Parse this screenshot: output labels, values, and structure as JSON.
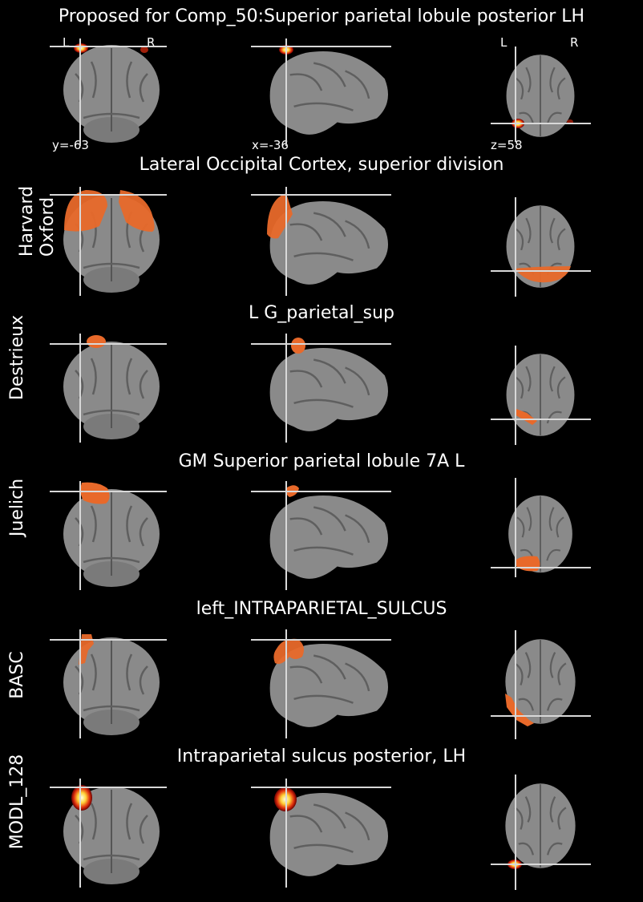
{
  "header": {
    "title": "Proposed for Comp_50:Superior parietal lobule posterior LH",
    "coords": {
      "coronal": "y=-63",
      "sagittal": "x=-36",
      "axial": "z=58"
    },
    "orient_coronal_left": "L",
    "orient_coronal_right": "R",
    "orient_axial_left": "L",
    "orient_axial_right": "R"
  },
  "rows": [
    {
      "atlas": "Harvard\nOxford",
      "region": "Lateral Occipital Cortex, superior division"
    },
    {
      "atlas": "Destrieux",
      "region": "L G_parietal_sup"
    },
    {
      "atlas": "Juelich",
      "region": "GM Superior parietal lobule 7A L"
    },
    {
      "atlas": "BASC",
      "region": "left_INTRAPARIETAL_SULCUS"
    },
    {
      "atlas": "MODL_128",
      "region": "Intraparietal sulcus posterior, LH"
    }
  ],
  "colors": {
    "background": "#000000",
    "overlay": "#e8692a",
    "crosshair": "#d8d8d8",
    "brain": "#8a8a8a"
  }
}
